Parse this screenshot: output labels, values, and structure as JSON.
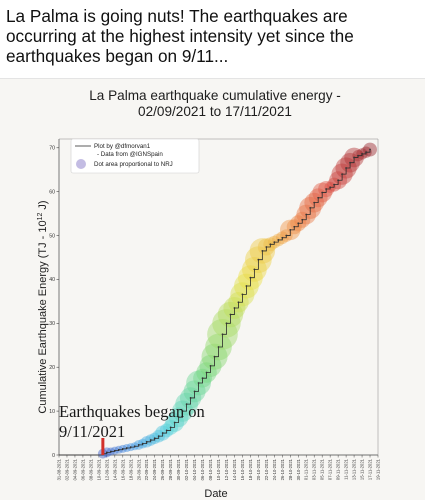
{
  "post": {
    "caption_lines": [
      "La Palma is going nuts! The earthquakes are",
      "occurring at the highest intensity yet since the",
      "earthquakes began on 9/11..."
    ]
  },
  "chart_data": {
    "type": "line",
    "title_lines": [
      "La Palma earthquake cumulative energy  -",
      "02/09/2021 to 17/11/2021"
    ],
    "xlabel": "Date",
    "ylabel": "Cumulative Earthquake Energy (TJ - 10",
    "ylabel_exponent": "12",
    "ylabel_tail": " J)",
    "ylim": [
      0,
      72
    ],
    "yticks": [
      0,
      10,
      20,
      30,
      40,
      50,
      60,
      70
    ],
    "grid": false,
    "legend": {
      "position": "top-left",
      "entries": [
        {
          "text": "Plot by @dfmorvan1",
          "marker": "line"
        },
        {
          "text": "- Data from @IGNSpain",
          "marker": "none"
        },
        {
          "text": "Dot area proportional to NRJ",
          "marker": "dot"
        }
      ]
    },
    "categories": [
      "31-08-2021",
      "02-09-2021",
      "04-09-2021",
      "06-09-2021",
      "08-09-2021",
      "10-09-2021",
      "12-09-2021",
      "14-09-2021",
      "16-09-2021",
      "18-09-2021",
      "20-09-2021",
      "22-09-2021",
      "24-09-2021",
      "26-09-2021",
      "28-09-2021",
      "30-09-2021",
      "02-10-2021",
      "04-10-2021",
      "06-10-2021",
      "08-10-2021",
      "10-10-2021",
      "12-10-2021",
      "14-10-2021",
      "16-10-2021",
      "18-10-2021",
      "20-10-2021",
      "22-10-2021",
      "24-10-2021",
      "26-10-2021",
      "28-10-2021",
      "30-10-2021",
      "01-11-2021",
      "03-11-2021",
      "05-11-2021",
      "07-11-2021",
      "09-11-2021",
      "11-11-2021",
      "13-11-2021",
      "15-11-2021",
      "17-11-2021",
      "19-11-2021"
    ],
    "series": [
      {
        "x": [
          11,
          12,
          13,
          14,
          15,
          16,
          17,
          18,
          19,
          20,
          21,
          22,
          23,
          24,
          25,
          26,
          27,
          28,
          29,
          30,
          31,
          32,
          33,
          34,
          35,
          36,
          37,
          38,
          39,
          40,
          41,
          42,
          43,
          44,
          45,
          46,
          47,
          48,
          49,
          50,
          51,
          52,
          53,
          54,
          55,
          56,
          57,
          58,
          59,
          60,
          61,
          62,
          63,
          64,
          65,
          66,
          67,
          68,
          69,
          70,
          71,
          72,
          73,
          74,
          75,
          76,
          77,
          78
        ],
        "values": [
          0.3,
          0.6,
          0.8,
          1.0,
          1.2,
          1.4,
          1.6,
          1.8,
          2.0,
          2.3,
          2.6,
          3.0,
          3.4,
          3.8,
          4.3,
          5.0,
          5.6,
          6.3,
          7.4,
          8.6,
          10.0,
          11.6,
          13.0,
          14.5,
          16.4,
          17.5,
          18.8,
          20.3,
          22.4,
          24.6,
          27.5,
          30.0,
          32.0,
          33.5,
          34.8,
          36.6,
          38.5,
          40.4,
          42.3,
          44.5,
          46.5,
          47.4,
          48.0,
          48.5,
          49.0,
          49.5,
          50.0,
          51.3,
          52.0,
          52.8,
          53.6,
          54.8,
          56.3,
          57.5,
          58.6,
          59.8,
          60.6,
          61.0,
          61.6,
          62.6,
          64.0,
          65.4,
          66.6,
          67.8,
          68.2,
          68.6,
          69.0,
          69.6
        ],
        "dot_energy": [
          0.3,
          0.3,
          0.2,
          0.2,
          0.2,
          0.2,
          0.2,
          0.2,
          0.2,
          0.3,
          0.3,
          0.4,
          0.4,
          0.4,
          0.5,
          0.7,
          0.6,
          0.7,
          1.1,
          1.2,
          1.4,
          1.6,
          1.4,
          1.5,
          1.9,
          1.1,
          1.3,
          1.5,
          2.1,
          2.2,
          2.9,
          2.5,
          2.0,
          1.5,
          1.3,
          1.8,
          1.9,
          1.9,
          1.9,
          2.2,
          2.0,
          0.9,
          0.6,
          0.5,
          0.5,
          0.5,
          0.5,
          1.3,
          0.7,
          0.8,
          0.8,
          1.2,
          1.5,
          1.2,
          1.1,
          1.2,
          0.8,
          0.4,
          0.6,
          1.0,
          1.4,
          1.4,
          1.2,
          1.2,
          0.4,
          0.4,
          0.4,
          0.6
        ]
      }
    ],
    "annotation": {
      "lines": [
        "Earthquakes began on",
        "9/11/2021"
      ],
      "marker_x": 11,
      "marker_color": "#d3302a"
    }
  }
}
